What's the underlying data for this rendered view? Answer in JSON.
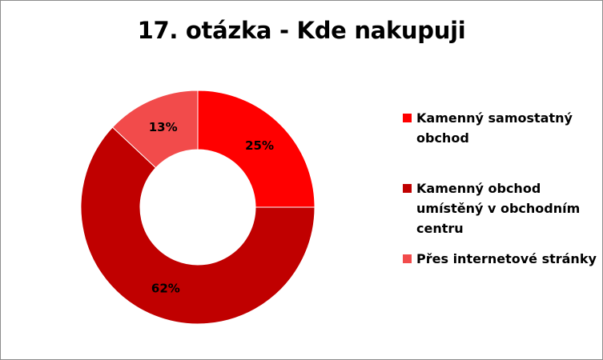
{
  "chart_data": {
    "type": "donut",
    "title": "17. otázka - Kde nakupuji",
    "series": [
      {
        "label": "Kamenný samostatný obchod",
        "value": 25,
        "data_label": "25%",
        "color": "#ff0000"
      },
      {
        "label": "Kamenný obchod umístěný v obchodním centru",
        "value": 62,
        "data_label": "62%",
        "color": "#c00000"
      },
      {
        "label": "Přes internetové stránky",
        "value": 13,
        "data_label": "13%",
        "color": "#f24b4b"
      }
    ],
    "legend_position": "right"
  }
}
